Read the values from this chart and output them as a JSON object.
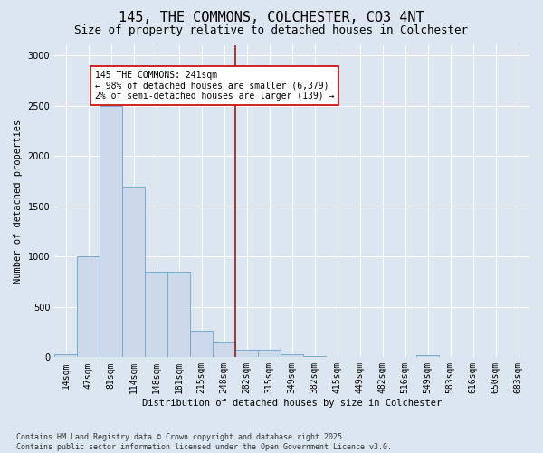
{
  "title_line1": "145, THE COMMONS, COLCHESTER, CO3 4NT",
  "title_line2": "Size of property relative to detached houses in Colchester",
  "xlabel": "Distribution of detached houses by size in Colchester",
  "ylabel": "Number of detached properties",
  "bar_labels": [
    "14sqm",
    "47sqm",
    "81sqm",
    "114sqm",
    "148sqm",
    "181sqm",
    "215sqm",
    "248sqm",
    "282sqm",
    "315sqm",
    "349sqm",
    "382sqm",
    "415sqm",
    "449sqm",
    "482sqm",
    "516sqm",
    "549sqm",
    "583sqm",
    "616sqm",
    "650sqm",
    "683sqm"
  ],
  "bar_values": [
    30,
    1000,
    2500,
    1700,
    850,
    850,
    260,
    150,
    75,
    75,
    30,
    15,
    0,
    0,
    0,
    0,
    20,
    0,
    0,
    0,
    0
  ],
  "bar_color": "#ccd9ea",
  "bar_edge_color": "#7aaaca",
  "vline_x": 7.5,
  "vline_color": "#9b1a1a",
  "annotation_text": "145 THE COMMONS: 241sqm\n← 98% of detached houses are smaller (6,379)\n2% of semi-detached houses are larger (139) →",
  "annotation_box_color": "white",
  "annotation_box_edge": "#cc0000",
  "ylim": [
    0,
    3100
  ],
  "yticks": [
    0,
    500,
    1000,
    1500,
    2000,
    2500,
    3000
  ],
  "bg_color": "#dce6f0",
  "plot_bg_color": "#dce6f0",
  "footnote": "Contains HM Land Registry data © Crown copyright and database right 2025.\nContains public sector information licensed under the Open Government Licence v3.0.",
  "title_fontsize": 11,
  "subtitle_fontsize": 9,
  "label_fontsize": 7.5,
  "tick_fontsize": 7,
  "annotation_fontsize": 7,
  "footnote_fontsize": 6
}
